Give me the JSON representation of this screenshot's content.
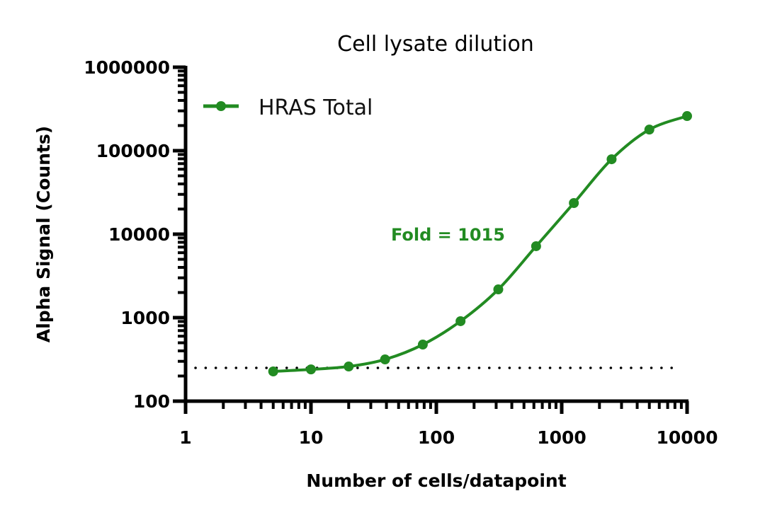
{
  "chart_data": {
    "type": "scatter",
    "title": "Cell lysate dilution",
    "xlabel": "Number of cells/datapoint",
    "ylabel": "Alpha Signal (Counts)",
    "xscale": "log",
    "yscale": "log",
    "xlim": [
      1,
      10000
    ],
    "ylim": [
      100,
      1000000
    ],
    "xticks": [
      "1",
      "10",
      "100",
      "1000",
      "10000"
    ],
    "yticks": [
      "100",
      "1000",
      "10000",
      "100000",
      "1000000"
    ],
    "grid": false,
    "legend_position": "top-left",
    "series": [
      {
        "name": "HRAS Total",
        "color": "#228B22",
        "marker": "circle",
        "fit_line": true,
        "x": [
          5,
          10,
          20,
          39,
          78,
          156,
          312,
          625,
          1250,
          2500,
          5000,
          10000
        ],
        "y": [
          227,
          240,
          260,
          316,
          476,
          908,
          2180,
          7180,
          23600,
          79000,
          179000,
          260000
        ]
      }
    ],
    "reference_line": {
      "y": 250,
      "style": "dotted",
      "color": "#000000",
      "x_range": [
        1.2,
        8700
      ]
    },
    "annotations": [
      {
        "text": "Fold = 1015",
        "color": "#228B22"
      }
    ]
  }
}
